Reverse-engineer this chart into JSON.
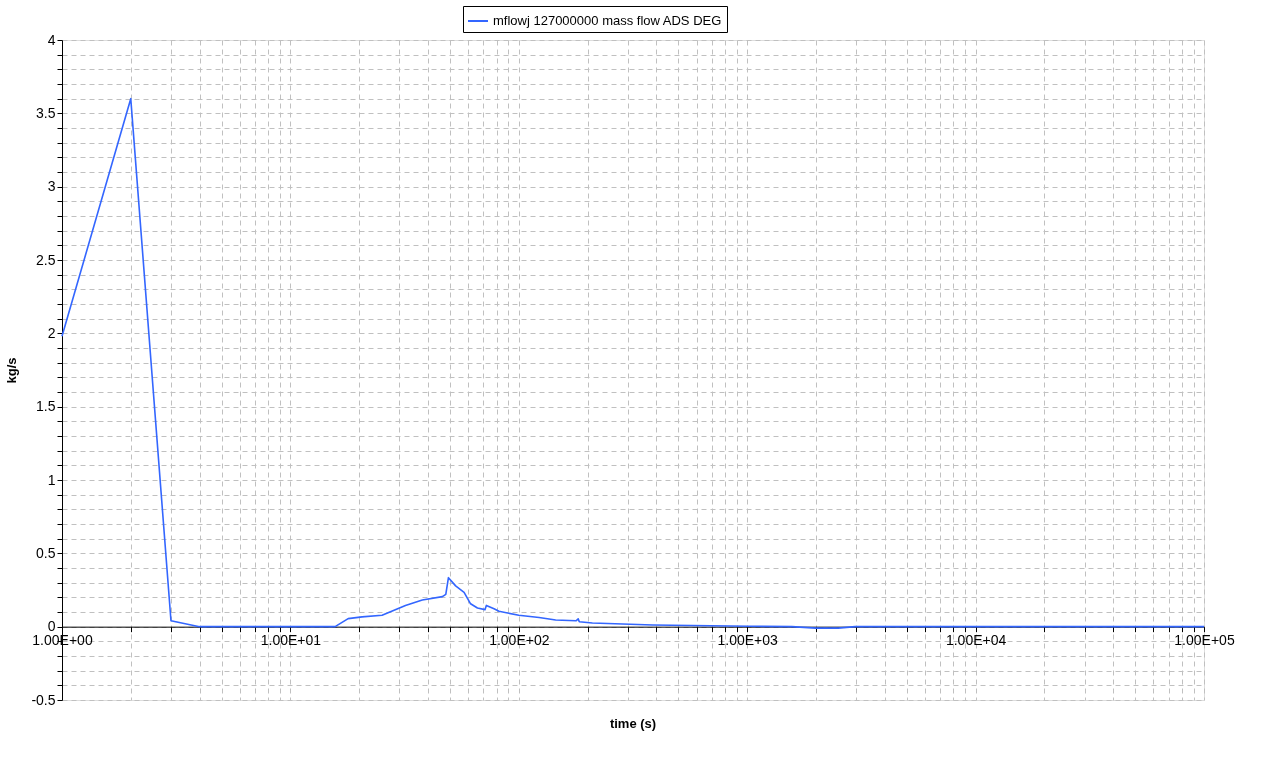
{
  "chart_data": {
    "type": "line",
    "xlabel": "time (s)",
    "ylabel": "kg/s",
    "log": "x",
    "grid": true,
    "legend": "top",
    "marker": "none",
    "line_style": "solid",
    "xlim": [
      1,
      100000
    ],
    "ylim": [
      -0.5,
      4
    ],
    "xticks": [
      {
        "value": 1,
        "label": "1.00E+00"
      },
      {
        "value": 2,
        "label": null
      },
      {
        "value": 3,
        "label": null
      },
      {
        "value": 4,
        "label": null
      },
      {
        "value": 5,
        "label": null
      },
      {
        "value": 6,
        "label": null
      },
      {
        "value": 7,
        "label": null
      },
      {
        "value": 8,
        "label": null
      },
      {
        "value": 9,
        "label": null
      },
      {
        "value": 10,
        "label": "1.00E+01"
      },
      {
        "value": 20,
        "label": null
      },
      {
        "value": 30,
        "label": null
      },
      {
        "value": 40,
        "label": null
      },
      {
        "value": 50,
        "label": null
      },
      {
        "value": 60,
        "label": null
      },
      {
        "value": 70,
        "label": null
      },
      {
        "value": 80,
        "label": null
      },
      {
        "value": 90,
        "label": null
      },
      {
        "value": 100,
        "label": "1.00E+02"
      },
      {
        "value": 200,
        "label": null
      },
      {
        "value": 300,
        "label": null
      },
      {
        "value": 400,
        "label": null
      },
      {
        "value": 500,
        "label": null
      },
      {
        "value": 600,
        "label": null
      },
      {
        "value": 700,
        "label": null
      },
      {
        "value": 800,
        "label": null
      },
      {
        "value": 900,
        "label": null
      },
      {
        "value": 1000,
        "label": "1.00E+03"
      },
      {
        "value": 2000,
        "label": null
      },
      {
        "value": 3000,
        "label": null
      },
      {
        "value": 4000,
        "label": null
      },
      {
        "value": 5000,
        "label": null
      },
      {
        "value": 6000,
        "label": null
      },
      {
        "value": 7000,
        "label": null
      },
      {
        "value": 8000,
        "label": null
      },
      {
        "value": 9000,
        "label": null
      },
      {
        "value": 10000,
        "label": "1.00E+04"
      },
      {
        "value": 20000,
        "label": null
      },
      {
        "value": 30000,
        "label": null
      },
      {
        "value": 40000,
        "label": null
      },
      {
        "value": 50000,
        "label": null
      },
      {
        "value": 60000,
        "label": null
      },
      {
        "value": 70000,
        "label": null
      },
      {
        "value": 80000,
        "label": null
      },
      {
        "value": 90000,
        "label": null
      },
      {
        "value": 100000,
        "label": "1.00E+05"
      }
    ],
    "yticks": [
      -0.5,
      {
        "value": -0.4,
        "label": null
      },
      {
        "value": -0.3,
        "label": null
      },
      {
        "value": -0.2,
        "label": null
      },
      {
        "value": -0.1,
        "label": null
      },
      0,
      {
        "value": 0.1,
        "label": null
      },
      {
        "value": 0.2,
        "label": null
      },
      {
        "value": 0.3,
        "label": null
      },
      {
        "value": 0.4,
        "label": null
      },
      0.5,
      {
        "value": 0.6,
        "label": null
      },
      {
        "value": 0.7,
        "label": null
      },
      {
        "value": 0.8,
        "label": null
      },
      {
        "value": 0.9,
        "label": null
      },
      1,
      {
        "value": 1.1,
        "label": null
      },
      {
        "value": 1.2,
        "label": null
      },
      {
        "value": 1.3,
        "label": null
      },
      {
        "value": 1.4,
        "label": null
      },
      1.5,
      {
        "value": 1.6,
        "label": null
      },
      {
        "value": 1.7,
        "label": null
      },
      {
        "value": 1.8,
        "label": null
      },
      {
        "value": 1.9,
        "label": null
      },
      2,
      {
        "value": 2.1,
        "label": null
      },
      {
        "value": 2.2,
        "label": null
      },
      {
        "value": 2.3,
        "label": null
      },
      {
        "value": 2.4,
        "label": null
      },
      2.5,
      {
        "value": 2.6,
        "label": null
      },
      {
        "value": 2.7,
        "label": null
      },
      {
        "value": 2.8,
        "label": null
      },
      {
        "value": 2.9,
        "label": null
      },
      3,
      {
        "value": 3.1,
        "label": null
      },
      {
        "value": 3.2,
        "label": null
      },
      {
        "value": 3.3,
        "label": null
      },
      {
        "value": 3.4,
        "label": null
      },
      3.5,
      {
        "value": 3.6,
        "label": null
      },
      {
        "value": 3.7,
        "label": null
      },
      {
        "value": 3.8,
        "label": null
      },
      {
        "value": 3.9,
        "label": null
      },
      4
    ],
    "series": [
      {
        "name": "mflowj 127000000 mass flow ADS DEG",
        "color": "#3366ff",
        "x": [
          1,
          2,
          3,
          4,
          10,
          15.7,
          17.9,
          20.6,
          25.2,
          31.9,
          37.8,
          46.3,
          47.9,
          49.2,
          52.9,
          57.6,
          61.5,
          65.9,
          71.1,
          72.1,
          77.9,
          81.9,
          100,
          122.7,
          145,
          178,
          182,
          184,
          210,
          386,
          1020,
          1567,
          2000,
          2500,
          2970,
          10000,
          100000
        ],
        "values": [
          1.98,
          3.6,
          0.04,
          0.0,
          0.0,
          0.0,
          0.055,
          0.067,
          0.078,
          0.145,
          0.182,
          0.205,
          0.22,
          0.334,
          0.278,
          0.234,
          0.156,
          0.127,
          0.116,
          0.145,
          0.122,
          0.105,
          0.078,
          0.062,
          0.045,
          0.04,
          0.053,
          0.033,
          0.025,
          0.011,
          0.003,
          0.0,
          -0.01,
          -0.01,
          0.0,
          0.0,
          0.0
        ]
      }
    ]
  }
}
